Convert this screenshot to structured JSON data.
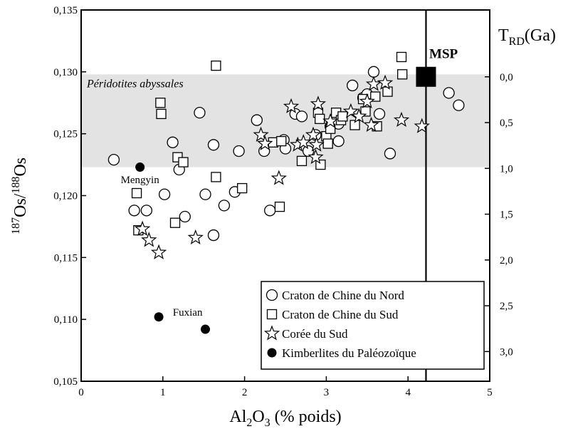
{
  "chart_data": {
    "type": "scatter",
    "xlabel": {
      "base": "Al",
      "sub1": "2",
      "mid": "O",
      "sub2": "3",
      "rest": " (% poids)"
    },
    "ylabel": {
      "sup1": "187",
      "mid": "Os/",
      "sup2": "188",
      "rest": "Os"
    },
    "y2label": {
      "base": "T",
      "sub": "RD",
      "rest": "(Ga)"
    },
    "xlim": [
      0,
      5
    ],
    "ylim": [
      0.105,
      0.135
    ],
    "x_ticks": [
      0,
      1,
      2,
      3,
      4,
      5
    ],
    "x_tick_labels": [
      "0",
      "1",
      "2",
      "3",
      "4",
      "5"
    ],
    "y_ticks": [
      0.105,
      0.11,
      0.115,
      0.12,
      0.125,
      0.13,
      0.135
    ],
    "y_tick_labels": [
      "0,105",
      "0,110",
      "0,115",
      "0,120",
      "0,125",
      "0,130",
      "0,135"
    ],
    "y2_ticks": [
      {
        "label": "0,0",
        "y": 0.1296
      },
      {
        "label": "0,5",
        "y": 0.1259
      },
      {
        "label": "1,0",
        "y": 0.1222
      },
      {
        "label": "1,5",
        "y": 0.1185
      },
      {
        "label": "2,0",
        "y": 0.1148
      },
      {
        "label": "2,5",
        "y": 0.1111
      },
      {
        "label": "3,0",
        "y": 0.1074
      }
    ],
    "band": {
      "y": [
        0.1223,
        0.1298
      ],
      "label": "Péridotites abyssales",
      "color": "#e3e3e3"
    },
    "msp_line_x": 4.22,
    "annotations": [
      {
        "text": "MSP",
        "x": 4.26,
        "y": 0.1311
      },
      {
        "text": "Mengyin",
        "x": 0.72,
        "y": 0.121
      },
      {
        "text": "Fuxian",
        "x": 1.0,
        "y": 0.1103
      }
    ],
    "msp_point": {
      "x": 4.22,
      "y": 0.1296
    },
    "legend_position": "bottom-right",
    "series": [
      {
        "name": "Craton de Chine du Nord",
        "marker": "circle",
        "points": [
          [
            0.4,
            0.1229
          ],
          [
            0.65,
            0.1188
          ],
          [
            0.8,
            0.1188
          ],
          [
            1.02,
            0.1201
          ],
          [
            1.12,
            0.1243
          ],
          [
            1.2,
            0.1221
          ],
          [
            1.27,
            0.1183
          ],
          [
            1.45,
            0.1267
          ],
          [
            1.52,
            0.1201
          ],
          [
            1.62,
            0.1241
          ],
          [
            1.62,
            0.1168
          ],
          [
            1.75,
            0.1192
          ],
          [
            1.88,
            0.1203
          ],
          [
            1.93,
            0.1236
          ],
          [
            2.15,
            0.1261
          ],
          [
            2.24,
            0.1236
          ],
          [
            2.31,
            0.1188
          ],
          [
            2.48,
            0.1245
          ],
          [
            2.5,
            0.1238
          ],
          [
            2.62,
            0.1266
          ],
          [
            2.7,
            0.1264
          ],
          [
            2.78,
            0.1236
          ],
          [
            2.87,
            0.1249
          ],
          [
            3.05,
            0.1256
          ],
          [
            3.15,
            0.1258
          ],
          [
            3.15,
            0.1244
          ],
          [
            3.32,
            0.1289
          ],
          [
            3.45,
            0.1279
          ],
          [
            3.5,
            0.1282
          ],
          [
            3.58,
            0.13
          ],
          [
            3.65,
            0.1266
          ],
          [
            3.78,
            0.1234
          ],
          [
            4.5,
            0.1283
          ],
          [
            4.62,
            0.1273
          ]
        ]
      },
      {
        "name": "Craton de Chine du Sud",
        "marker": "square",
        "points": [
          [
            0.68,
            0.1202
          ],
          [
            0.7,
            0.1172
          ],
          [
            0.97,
            0.1275
          ],
          [
            0.98,
            0.1266
          ],
          [
            1.15,
            0.1178
          ],
          [
            1.18,
            0.1231
          ],
          [
            1.25,
            0.1227
          ],
          [
            1.65,
            0.1305
          ],
          [
            1.65,
            0.1215
          ],
          [
            1.97,
            0.1206
          ],
          [
            2.35,
            0.1243
          ],
          [
            2.43,
            0.1191
          ],
          [
            2.45,
            0.1244
          ],
          [
            2.7,
            0.1228
          ],
          [
            2.9,
            0.1267
          ],
          [
            2.92,
            0.1262
          ],
          [
            2.93,
            0.1225
          ],
          [
            3.0,
            0.1248
          ],
          [
            3.02,
            0.1242
          ],
          [
            3.05,
            0.1254
          ],
          [
            3.12,
            0.1267
          ],
          [
            3.18,
            0.1261
          ],
          [
            3.2,
            0.1264
          ],
          [
            3.35,
            0.1257
          ],
          [
            3.45,
            0.1278
          ],
          [
            3.48,
            0.1268
          ],
          [
            3.6,
            0.128
          ],
          [
            3.62,
            0.1256
          ],
          [
            3.75,
            0.1284
          ],
          [
            3.92,
            0.1312
          ],
          [
            3.93,
            0.1298
          ]
        ]
      },
      {
        "name": "Corée du Sud",
        "marker": "star",
        "points": [
          [
            0.75,
            0.1173
          ],
          [
            0.83,
            0.1164
          ],
          [
            0.95,
            0.1154
          ],
          [
            1.4,
            0.1166
          ],
          [
            2.2,
            0.1249
          ],
          [
            2.25,
            0.1242
          ],
          [
            2.42,
            0.1214
          ],
          [
            2.57,
            0.1272
          ],
          [
            2.65,
            0.1241
          ],
          [
            2.72,
            0.1243
          ],
          [
            2.84,
            0.1249
          ],
          [
            2.87,
            0.1231
          ],
          [
            2.88,
            0.1241
          ],
          [
            2.9,
            0.1274
          ],
          [
            3.05,
            0.126
          ],
          [
            3.3,
            0.1268
          ],
          [
            3.4,
            0.1264
          ],
          [
            3.5,
            0.1276
          ],
          [
            3.55,
            0.1257
          ],
          [
            3.58,
            0.129
          ],
          [
            3.72,
            0.1291
          ],
          [
            3.92,
            0.1261
          ],
          [
            4.17,
            0.1256
          ]
        ]
      },
      {
        "name": "Kimberlites du Paléozoïque",
        "marker": "filled-circle",
        "points": [
          [
            0.72,
            0.1223
          ],
          [
            0.95,
            0.1102
          ],
          [
            1.52,
            0.1092
          ]
        ]
      }
    ]
  }
}
